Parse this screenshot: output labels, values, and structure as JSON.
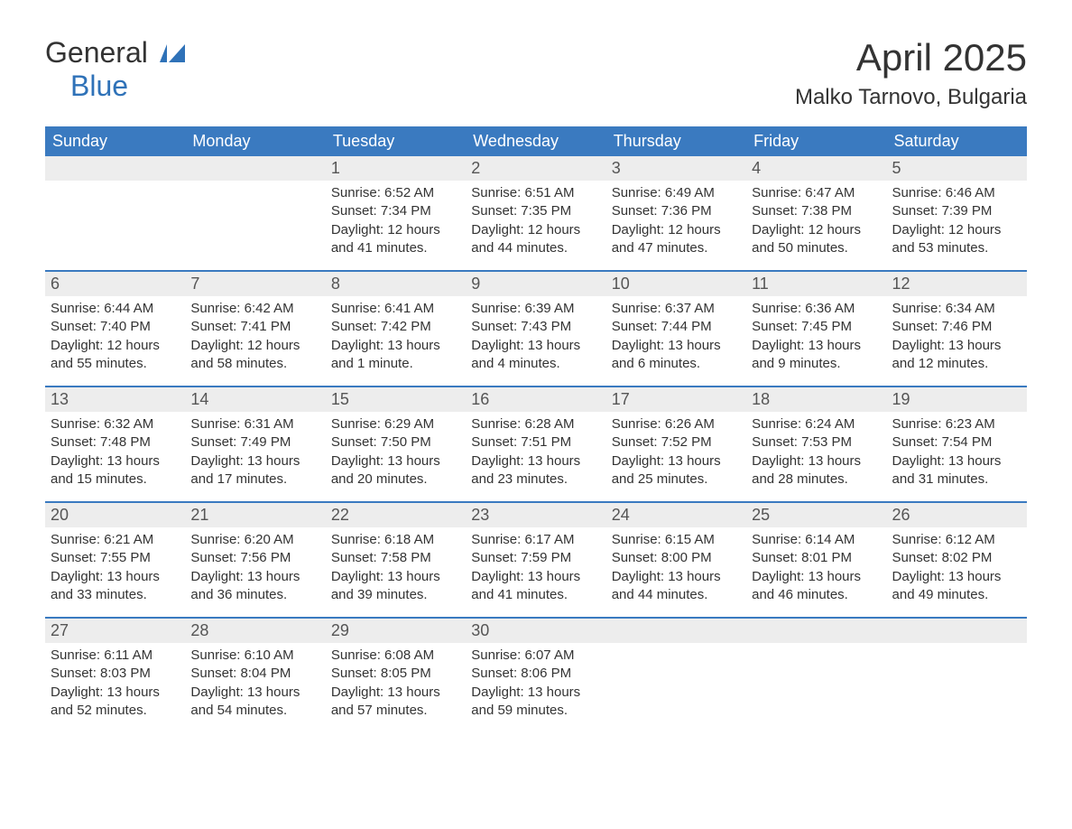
{
  "logo": {
    "line1": "General",
    "line2": "Blue"
  },
  "title": "April 2025",
  "location": "Malko Tarnovo, Bulgaria",
  "colors": {
    "header_bg": "#3a7ac0",
    "header_text": "#ffffff",
    "daynum_bg": "#ededed",
    "week_border": "#3a7ac0",
    "body_text": "#333333",
    "logo_accent": "#2f72b8"
  },
  "day_names": [
    "Sunday",
    "Monday",
    "Tuesday",
    "Wednesday",
    "Thursday",
    "Friday",
    "Saturday"
  ],
  "weeks": [
    [
      {
        "n": "",
        "sunrise": "",
        "sunset": "",
        "daylight": ""
      },
      {
        "n": "",
        "sunrise": "",
        "sunset": "",
        "daylight": ""
      },
      {
        "n": "1",
        "sunrise": "Sunrise: 6:52 AM",
        "sunset": "Sunset: 7:34 PM",
        "daylight": "Daylight: 12 hours and 41 minutes."
      },
      {
        "n": "2",
        "sunrise": "Sunrise: 6:51 AM",
        "sunset": "Sunset: 7:35 PM",
        "daylight": "Daylight: 12 hours and 44 minutes."
      },
      {
        "n": "3",
        "sunrise": "Sunrise: 6:49 AM",
        "sunset": "Sunset: 7:36 PM",
        "daylight": "Daylight: 12 hours and 47 minutes."
      },
      {
        "n": "4",
        "sunrise": "Sunrise: 6:47 AM",
        "sunset": "Sunset: 7:38 PM",
        "daylight": "Daylight: 12 hours and 50 minutes."
      },
      {
        "n": "5",
        "sunrise": "Sunrise: 6:46 AM",
        "sunset": "Sunset: 7:39 PM",
        "daylight": "Daylight: 12 hours and 53 minutes."
      }
    ],
    [
      {
        "n": "6",
        "sunrise": "Sunrise: 6:44 AM",
        "sunset": "Sunset: 7:40 PM",
        "daylight": "Daylight: 12 hours and 55 minutes."
      },
      {
        "n": "7",
        "sunrise": "Sunrise: 6:42 AM",
        "sunset": "Sunset: 7:41 PM",
        "daylight": "Daylight: 12 hours and 58 minutes."
      },
      {
        "n": "8",
        "sunrise": "Sunrise: 6:41 AM",
        "sunset": "Sunset: 7:42 PM",
        "daylight": "Daylight: 13 hours and 1 minute."
      },
      {
        "n": "9",
        "sunrise": "Sunrise: 6:39 AM",
        "sunset": "Sunset: 7:43 PM",
        "daylight": "Daylight: 13 hours and 4 minutes."
      },
      {
        "n": "10",
        "sunrise": "Sunrise: 6:37 AM",
        "sunset": "Sunset: 7:44 PM",
        "daylight": "Daylight: 13 hours and 6 minutes."
      },
      {
        "n": "11",
        "sunrise": "Sunrise: 6:36 AM",
        "sunset": "Sunset: 7:45 PM",
        "daylight": "Daylight: 13 hours and 9 minutes."
      },
      {
        "n": "12",
        "sunrise": "Sunrise: 6:34 AM",
        "sunset": "Sunset: 7:46 PM",
        "daylight": "Daylight: 13 hours and 12 minutes."
      }
    ],
    [
      {
        "n": "13",
        "sunrise": "Sunrise: 6:32 AM",
        "sunset": "Sunset: 7:48 PM",
        "daylight": "Daylight: 13 hours and 15 minutes."
      },
      {
        "n": "14",
        "sunrise": "Sunrise: 6:31 AM",
        "sunset": "Sunset: 7:49 PM",
        "daylight": "Daylight: 13 hours and 17 minutes."
      },
      {
        "n": "15",
        "sunrise": "Sunrise: 6:29 AM",
        "sunset": "Sunset: 7:50 PM",
        "daylight": "Daylight: 13 hours and 20 minutes."
      },
      {
        "n": "16",
        "sunrise": "Sunrise: 6:28 AM",
        "sunset": "Sunset: 7:51 PM",
        "daylight": "Daylight: 13 hours and 23 minutes."
      },
      {
        "n": "17",
        "sunrise": "Sunrise: 6:26 AM",
        "sunset": "Sunset: 7:52 PM",
        "daylight": "Daylight: 13 hours and 25 minutes."
      },
      {
        "n": "18",
        "sunrise": "Sunrise: 6:24 AM",
        "sunset": "Sunset: 7:53 PM",
        "daylight": "Daylight: 13 hours and 28 minutes."
      },
      {
        "n": "19",
        "sunrise": "Sunrise: 6:23 AM",
        "sunset": "Sunset: 7:54 PM",
        "daylight": "Daylight: 13 hours and 31 minutes."
      }
    ],
    [
      {
        "n": "20",
        "sunrise": "Sunrise: 6:21 AM",
        "sunset": "Sunset: 7:55 PM",
        "daylight": "Daylight: 13 hours and 33 minutes."
      },
      {
        "n": "21",
        "sunrise": "Sunrise: 6:20 AM",
        "sunset": "Sunset: 7:56 PM",
        "daylight": "Daylight: 13 hours and 36 minutes."
      },
      {
        "n": "22",
        "sunrise": "Sunrise: 6:18 AM",
        "sunset": "Sunset: 7:58 PM",
        "daylight": "Daylight: 13 hours and 39 minutes."
      },
      {
        "n": "23",
        "sunrise": "Sunrise: 6:17 AM",
        "sunset": "Sunset: 7:59 PM",
        "daylight": "Daylight: 13 hours and 41 minutes."
      },
      {
        "n": "24",
        "sunrise": "Sunrise: 6:15 AM",
        "sunset": "Sunset: 8:00 PM",
        "daylight": "Daylight: 13 hours and 44 minutes."
      },
      {
        "n": "25",
        "sunrise": "Sunrise: 6:14 AM",
        "sunset": "Sunset: 8:01 PM",
        "daylight": "Daylight: 13 hours and 46 minutes."
      },
      {
        "n": "26",
        "sunrise": "Sunrise: 6:12 AM",
        "sunset": "Sunset: 8:02 PM",
        "daylight": "Daylight: 13 hours and 49 minutes."
      }
    ],
    [
      {
        "n": "27",
        "sunrise": "Sunrise: 6:11 AM",
        "sunset": "Sunset: 8:03 PM",
        "daylight": "Daylight: 13 hours and 52 minutes."
      },
      {
        "n": "28",
        "sunrise": "Sunrise: 6:10 AM",
        "sunset": "Sunset: 8:04 PM",
        "daylight": "Daylight: 13 hours and 54 minutes."
      },
      {
        "n": "29",
        "sunrise": "Sunrise: 6:08 AM",
        "sunset": "Sunset: 8:05 PM",
        "daylight": "Daylight: 13 hours and 57 minutes."
      },
      {
        "n": "30",
        "sunrise": "Sunrise: 6:07 AM",
        "sunset": "Sunset: 8:06 PM",
        "daylight": "Daylight: 13 hours and 59 minutes."
      },
      {
        "n": "",
        "sunrise": "",
        "sunset": "",
        "daylight": ""
      },
      {
        "n": "",
        "sunrise": "",
        "sunset": "",
        "daylight": ""
      },
      {
        "n": "",
        "sunrise": "",
        "sunset": "",
        "daylight": ""
      }
    ]
  ]
}
